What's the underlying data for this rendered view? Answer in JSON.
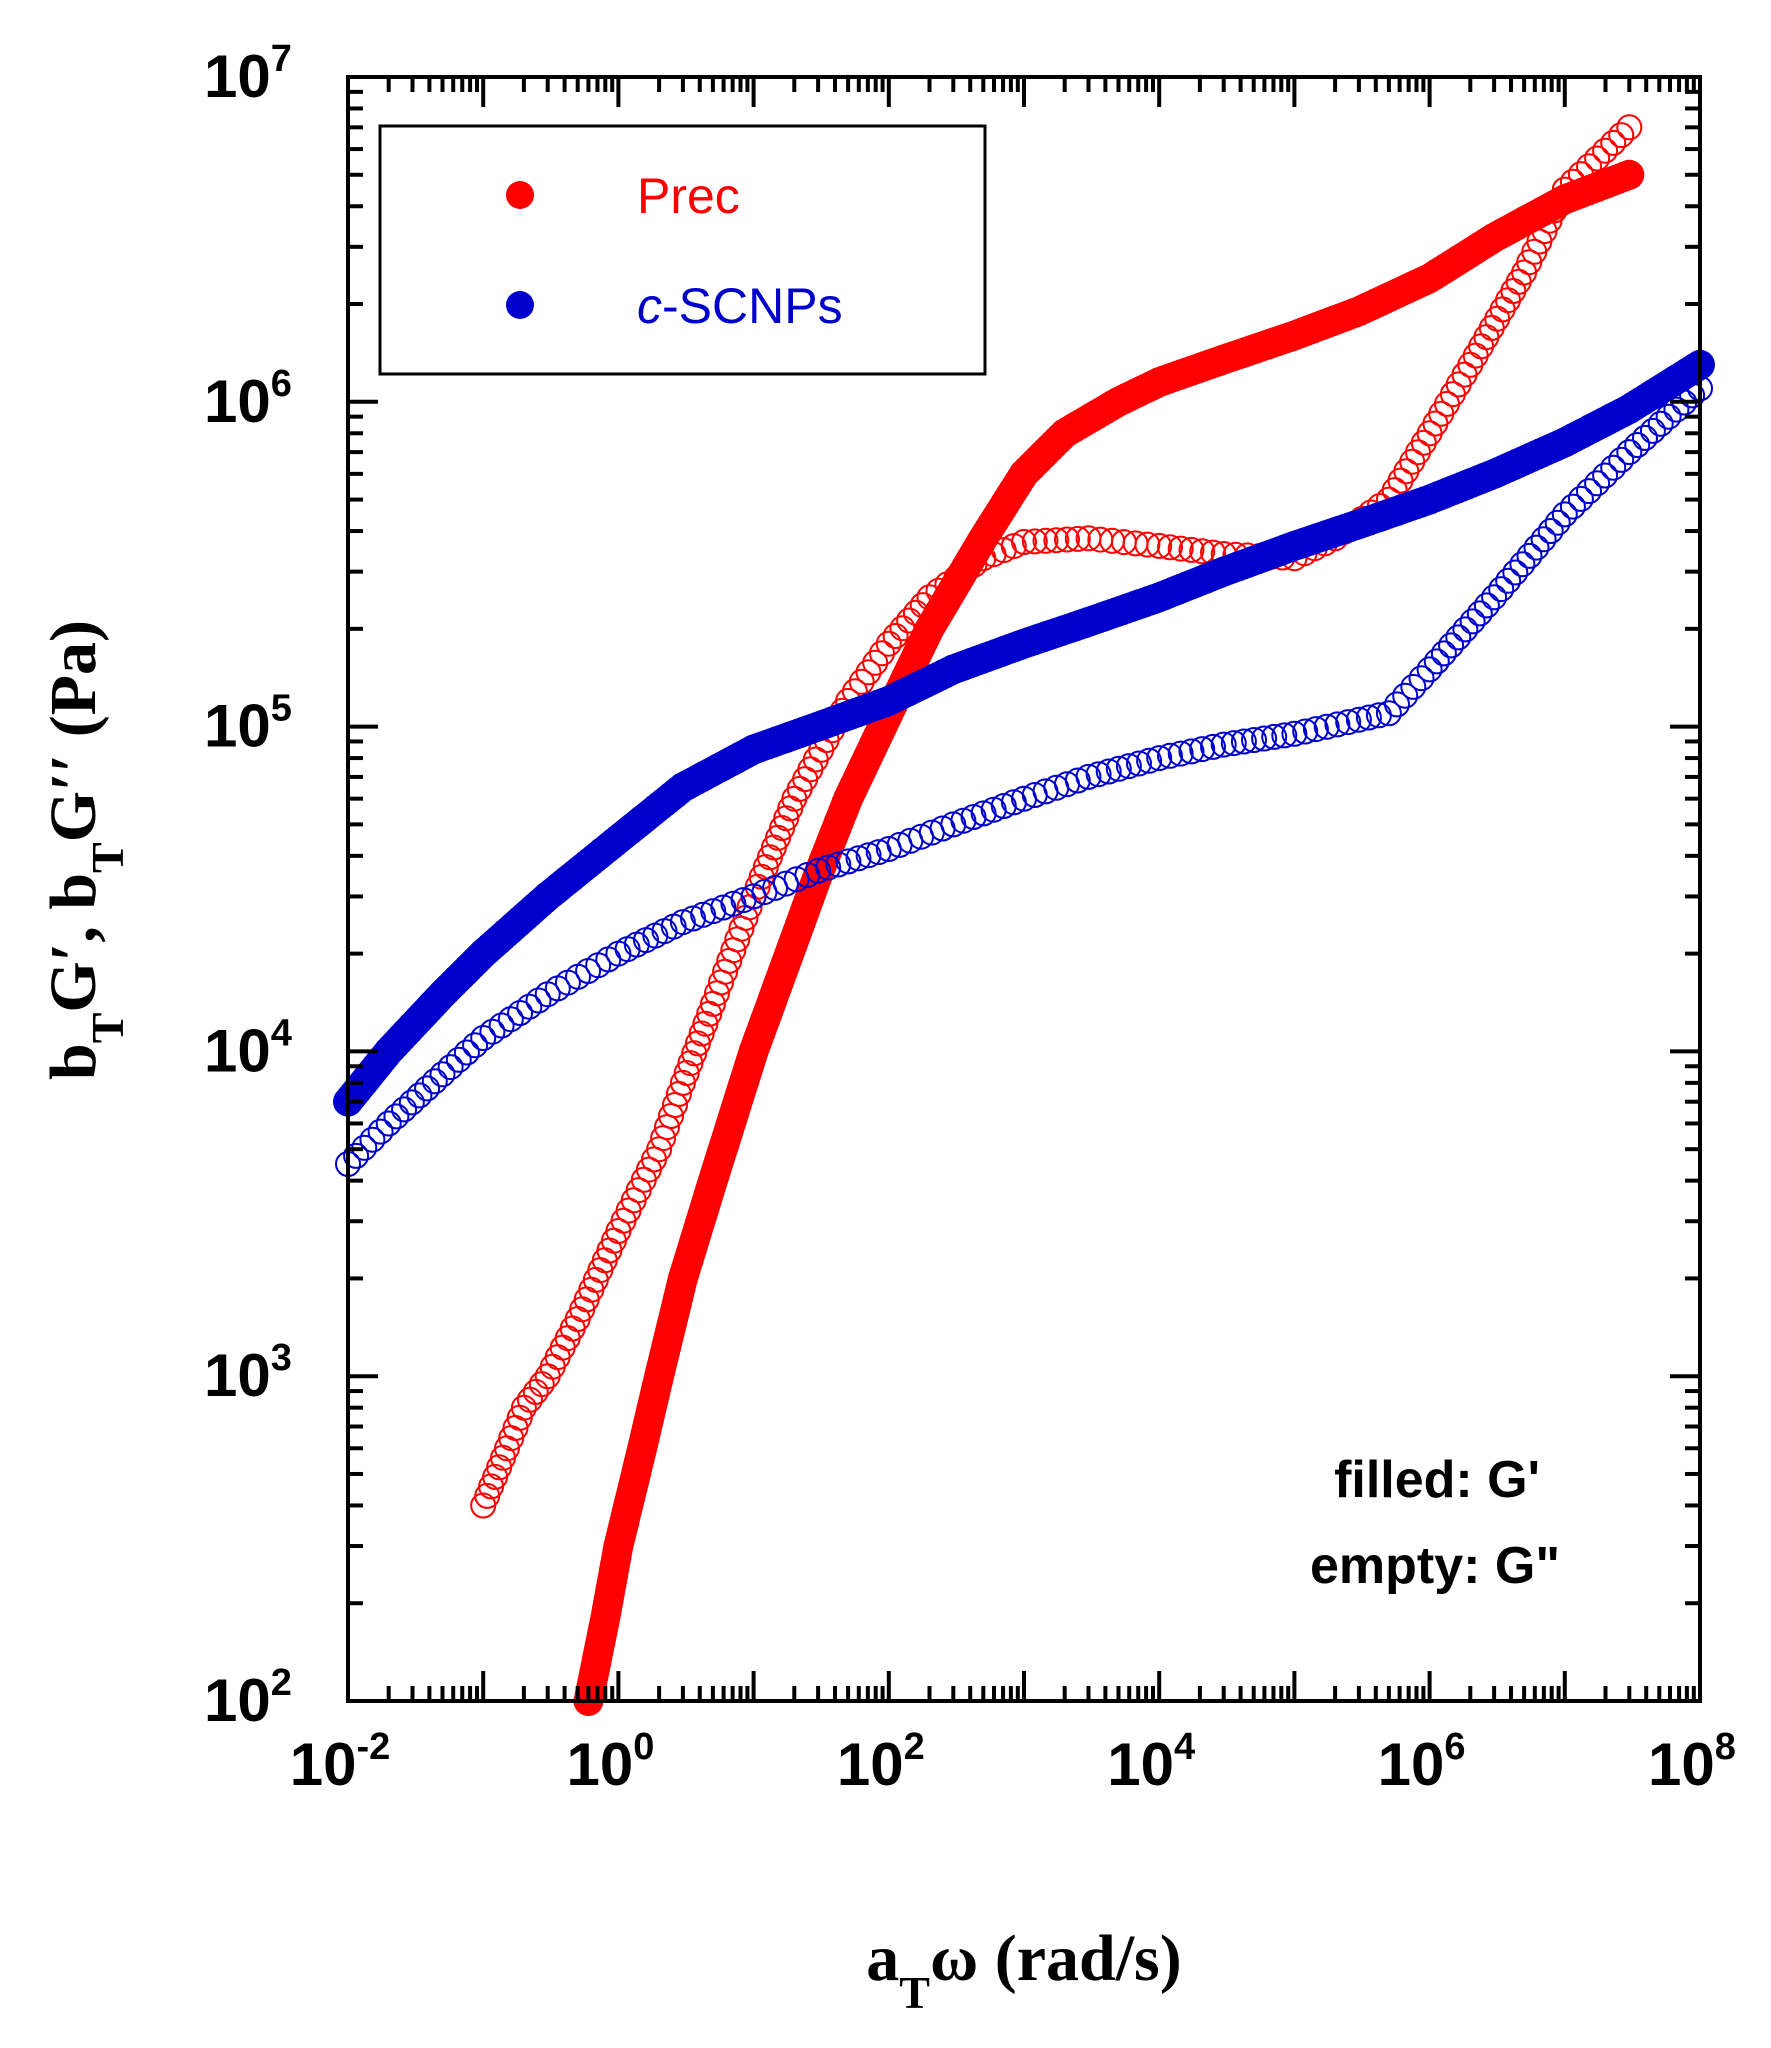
{
  "chart_data": {
    "type": "scatter",
    "x_scale": "log",
    "y_scale": "log",
    "xlim": [
      0.01,
      100000000
    ],
    "ylim": [
      100,
      10000000
    ],
    "grid": false,
    "xlabel": {
      "main": "a",
      "sub": "T",
      "rest": "ω (rad/s)"
    },
    "ylabel": {
      "p1": "b",
      "s1": "T",
      "p2": "G′, b",
      "s2": "T",
      "p3": "G′′ (Pa)"
    },
    "x_ticks": [
      {
        "base": "10",
        "exp": "-2",
        "value": 0.01
      },
      {
        "base": "10",
        "exp": "0",
        "value": 1
      },
      {
        "base": "10",
        "exp": "2",
        "value": 100
      },
      {
        "base": "10",
        "exp": "4",
        "value": 10000
      },
      {
        "base": "10",
        "exp": "6",
        "value": 1000000
      },
      {
        "base": "10",
        "exp": "8",
        "value": 100000000
      }
    ],
    "y_ticks": [
      {
        "base": "10",
        "exp": "2",
        "value": 100
      },
      {
        "base": "10",
        "exp": "3",
        "value": 1000
      },
      {
        "base": "10",
        "exp": "4",
        "value": 10000
      },
      {
        "base": "10",
        "exp": "5",
        "value": 100000
      },
      {
        "base": "10",
        "exp": "6",
        "value": 1000000
      },
      {
        "base": "10",
        "exp": "7",
        "value": 10000000
      }
    ],
    "legend": {
      "placement": "top-left",
      "entries": [
        {
          "prefix": "",
          "italic": "",
          "label": "Prec",
          "color": "#ff0000"
        },
        {
          "prefix": "",
          "italic": "c",
          "label": "-SCNPs",
          "color": "#0000cc"
        }
      ]
    },
    "annotation": [
      "filled: G'",
      "empty: G\""
    ],
    "series": [
      {
        "name": "Prec G'",
        "color": "#ff0000",
        "marker": "filled",
        "points": [
          [
            0.6,
            100
          ],
          [
            0.8,
            180
          ],
          [
            1,
            300
          ],
          [
            1.5,
            600
          ],
          [
            2,
            1000
          ],
          [
            3,
            2000
          ],
          [
            5,
            4000
          ],
          [
            10,
            10000
          ],
          [
            20,
            22000
          ],
          [
            30,
            35000
          ],
          [
            50,
            60000
          ],
          [
            100,
            110000
          ],
          [
            200,
            200000
          ],
          [
            500,
            380000
          ],
          [
            1000,
            600000
          ],
          [
            2000,
            800000
          ],
          [
            5000,
            1000000
          ],
          [
            10000,
            1150000
          ],
          [
            30000,
            1350000
          ],
          [
            100000,
            1600000
          ],
          [
            300000,
            1900000
          ],
          [
            1000000,
            2400000
          ],
          [
            3000000,
            3200000
          ],
          [
            10000000,
            4200000
          ],
          [
            30000000,
            5000000
          ]
        ]
      },
      {
        "name": "Prec G''",
        "color": "#ff0000",
        "marker": "empty",
        "points": [
          [
            0.1,
            400
          ],
          [
            0.15,
            600
          ],
          [
            0.2,
            800
          ],
          [
            0.3,
            1000
          ],
          [
            0.5,
            1500
          ],
          [
            1,
            2800
          ],
          [
            2,
            5000
          ],
          [
            3,
            8000
          ],
          [
            5,
            14000
          ],
          [
            10,
            30000
          ],
          [
            20,
            60000
          ],
          [
            50,
            120000
          ],
          [
            100,
            180000
          ],
          [
            200,
            250000
          ],
          [
            500,
            330000
          ],
          [
            1000,
            370000
          ],
          [
            3000,
            380000
          ],
          [
            10000,
            360000
          ],
          [
            30000,
            340000
          ],
          [
            100000,
            330000
          ],
          [
            200000,
            380000
          ],
          [
            500000,
            500000
          ],
          [
            1000000,
            800000
          ],
          [
            2000000,
            1300000
          ],
          [
            5000000,
            2500000
          ],
          [
            10000000,
            4500000
          ],
          [
            30000000,
            7000000
          ]
        ]
      },
      {
        "name": "c-SCNPs G'",
        "color": "#0000cc",
        "marker": "filled",
        "points": [
          [
            0.01,
            7000
          ],
          [
            0.02,
            10000
          ],
          [
            0.05,
            15000
          ],
          [
            0.1,
            20000
          ],
          [
            0.3,
            30000
          ],
          [
            1,
            45000
          ],
          [
            3,
            65000
          ],
          [
            10,
            85000
          ],
          [
            30,
            100000
          ],
          [
            100,
            120000
          ],
          [
            300,
            150000
          ],
          [
            1000,
            180000
          ],
          [
            3000,
            210000
          ],
          [
            10000,
            250000
          ],
          [
            30000,
            300000
          ],
          [
            100000,
            360000
          ],
          [
            300000,
            420000
          ],
          [
            1000000,
            500000
          ],
          [
            3000000,
            600000
          ],
          [
            10000000,
            750000
          ],
          [
            30000000,
            950000
          ],
          [
            100000000,
            1300000
          ]
        ]
      },
      {
        "name": "c-SCNPs G''",
        "color": "#0000cc",
        "marker": "empty",
        "points": [
          [
            0.01,
            4500
          ],
          [
            0.02,
            6000
          ],
          [
            0.05,
            8500
          ],
          [
            0.1,
            11000
          ],
          [
            0.3,
            15000
          ],
          [
            1,
            20000
          ],
          [
            3,
            25000
          ],
          [
            10,
            30000
          ],
          [
            30,
            36000
          ],
          [
            100,
            42000
          ],
          [
            300,
            50000
          ],
          [
            1000,
            60000
          ],
          [
            3000,
            70000
          ],
          [
            10000,
            80000
          ],
          [
            30000,
            88000
          ],
          [
            100000,
            95000
          ],
          [
            300000,
            105000
          ],
          [
            500000,
            110000
          ],
          [
            1000000,
            150000
          ],
          [
            3000000,
            250000
          ],
          [
            10000000,
            450000
          ],
          [
            30000000,
            700000
          ],
          [
            100000000,
            1100000
          ]
        ]
      }
    ]
  }
}
